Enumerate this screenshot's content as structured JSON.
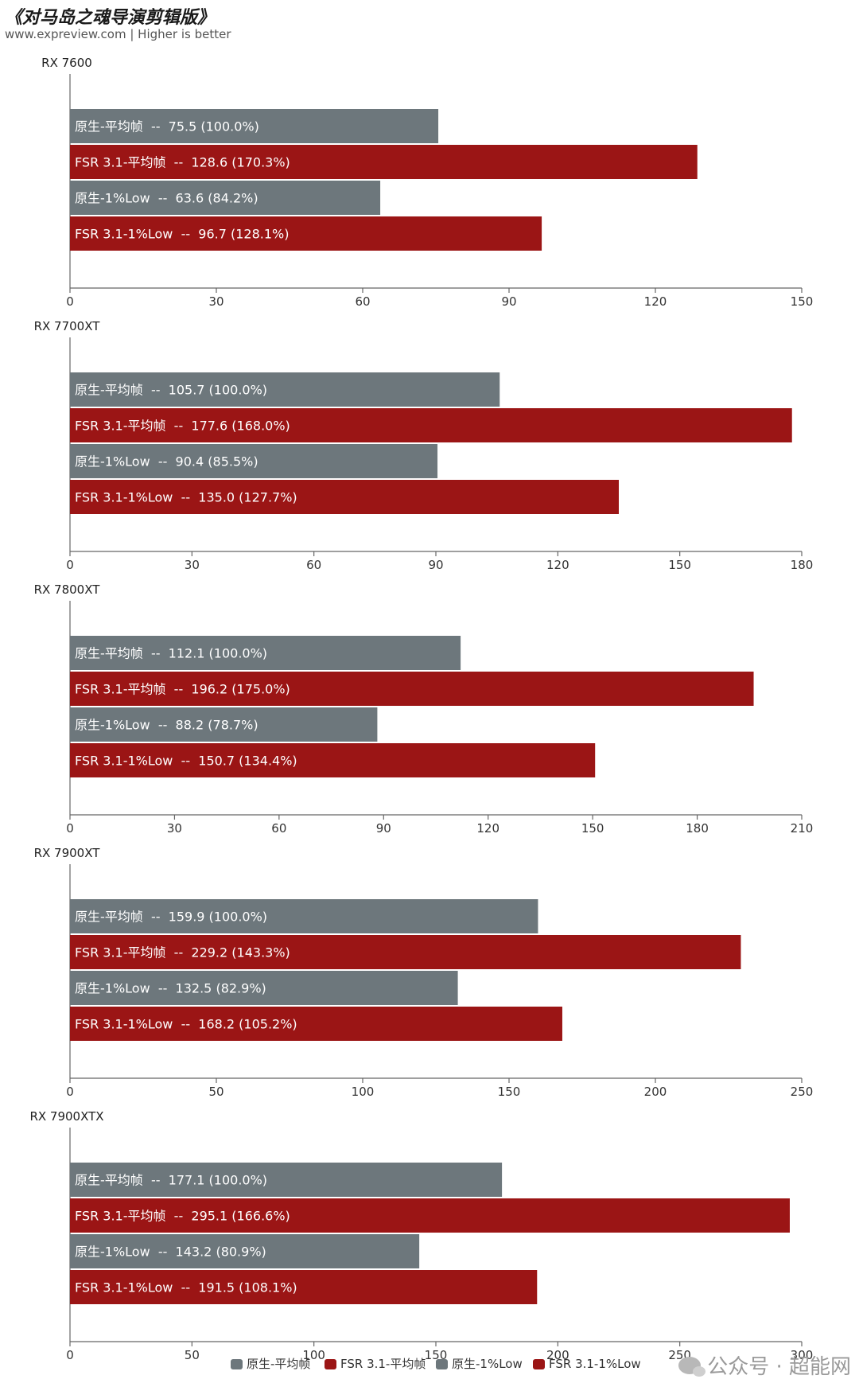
{
  "header": {
    "title": "《对马岛之魂导演剪辑版》",
    "subtitle": "www.expreview.com | Higher is better"
  },
  "watermark": {
    "text": "公众号 · 超能网"
  },
  "colors": {
    "native": "#6d777c",
    "fsr": "#9b1515"
  },
  "chart_data": {
    "type": "bar",
    "orientation": "horizontal",
    "series_names": [
      "原生-平均帧",
      "FSR 3.1-平均帧",
      "原生-1%Low",
      "FSR 3.1-1%Low"
    ],
    "legend_position": "bottom",
    "panels": [
      {
        "category": "RX 7600",
        "xlim": [
          0,
          150
        ],
        "ticks": [
          0,
          30,
          60,
          90,
          120,
          150
        ],
        "bars": [
          {
            "series": "原生-平均帧",
            "value": 75.5,
            "label": "原生-平均帧  --  75.5 (100.0%)"
          },
          {
            "series": "FSR 3.1-平均帧",
            "value": 128.6,
            "label": "FSR 3.1-平均帧  --  128.6 (170.3%)"
          },
          {
            "series": "原生-1%Low",
            "value": 63.6,
            "label": "原生-1%Low  --  63.6 (84.2%)"
          },
          {
            "series": "FSR 3.1-1%Low",
            "value": 96.7,
            "label": "FSR 3.1-1%Low  --  96.7 (128.1%)"
          }
        ]
      },
      {
        "category": "RX 7700XT",
        "xlim": [
          0,
          180
        ],
        "ticks": [
          0,
          30,
          60,
          90,
          120,
          150,
          180
        ],
        "bars": [
          {
            "series": "原生-平均帧",
            "value": 105.7,
            "label": "原生-平均帧  --  105.7 (100.0%)"
          },
          {
            "series": "FSR 3.1-平均帧",
            "value": 177.6,
            "label": "FSR 3.1-平均帧  --  177.6 (168.0%)"
          },
          {
            "series": "原生-1%Low",
            "value": 90.4,
            "label": "原生-1%Low  --  90.4 (85.5%)"
          },
          {
            "series": "FSR 3.1-1%Low",
            "value": 135.0,
            "label": "FSR 3.1-1%Low  --  135.0 (127.7%)"
          }
        ]
      },
      {
        "category": "RX 7800XT",
        "xlim": [
          0,
          210
        ],
        "ticks": [
          0,
          30,
          60,
          90,
          120,
          150,
          180,
          210
        ],
        "bars": [
          {
            "series": "原生-平均帧",
            "value": 112.1,
            "label": "原生-平均帧  --  112.1 (100.0%)"
          },
          {
            "series": "FSR 3.1-平均帧",
            "value": 196.2,
            "label": "FSR 3.1-平均帧  --  196.2 (175.0%)"
          },
          {
            "series": "原生-1%Low",
            "value": 88.2,
            "label": "原生-1%Low  --  88.2 (78.7%)"
          },
          {
            "series": "FSR 3.1-1%Low",
            "value": 150.7,
            "label": "FSR 3.1-1%Low  --  150.7 (134.4%)"
          }
        ]
      },
      {
        "category": "RX 7900XT",
        "xlim": [
          0,
          250
        ],
        "ticks": [
          0,
          50,
          100,
          150,
          200,
          250
        ],
        "bars": [
          {
            "series": "原生-平均帧",
            "value": 159.9,
            "label": "原生-平均帧  --  159.9 (100.0%)"
          },
          {
            "series": "FSR 3.1-平均帧",
            "value": 229.2,
            "label": "FSR 3.1-平均帧  --  229.2 (143.3%)"
          },
          {
            "series": "原生-1%Low",
            "value": 132.5,
            "label": "原生-1%Low  --  132.5 (82.9%)"
          },
          {
            "series": "FSR 3.1-1%Low",
            "value": 168.2,
            "label": "FSR 3.1-1%Low  --  168.2 (105.2%)"
          }
        ]
      },
      {
        "category": "RX 7900XTX",
        "xlim": [
          0,
          300
        ],
        "ticks": [
          0,
          50,
          100,
          150,
          200,
          250,
          300
        ],
        "bars": [
          {
            "series": "原生-平均帧",
            "value": 177.1,
            "label": "原生-平均帧  --  177.1 (100.0%)"
          },
          {
            "series": "FSR 3.1-平均帧",
            "value": 295.1,
            "label": "FSR 3.1-平均帧  --  295.1 (166.6%)"
          },
          {
            "series": "原生-1%Low",
            "value": 143.2,
            "label": "原生-1%Low  --  143.2 (80.9%)"
          },
          {
            "series": "FSR 3.1-1%Low",
            "value": 191.5,
            "label": "FSR 3.1-1%Low  --  191.5 (108.1%)"
          }
        ]
      }
    ]
  }
}
